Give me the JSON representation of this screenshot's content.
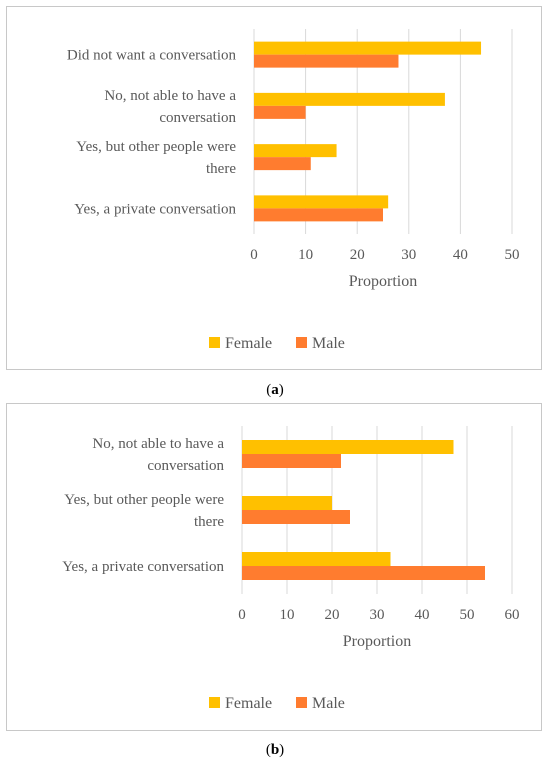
{
  "colors": {
    "female": "#FFC000",
    "male": "#FF7C2F",
    "grid": "#d9d9d9",
    "text": "#595959"
  },
  "legend": {
    "female": "Female",
    "male": "Male"
  },
  "captions": {
    "a": "a",
    "b": "b"
  },
  "chart_data": [
    {
      "type": "bar",
      "orientation": "horizontal",
      "categories": [
        [
          "Did not want a conversation"
        ],
        [
          "No, not able to have a",
          "conversation"
        ],
        [
          "Yes, but other people were",
          "there"
        ],
        [
          "Yes, a private conversation"
        ]
      ],
      "series": [
        {
          "name": "Female",
          "values": [
            44,
            37,
            16,
            26
          ]
        },
        {
          "name": "Male",
          "values": [
            28,
            10,
            11,
            25
          ]
        }
      ],
      "xlabel": "Proportion",
      "xlim": [
        0,
        50
      ],
      "xticks": [
        0,
        10,
        20,
        30,
        40,
        50
      ],
      "grid": true,
      "legend": "bottom"
    },
    {
      "type": "bar",
      "orientation": "horizontal",
      "categories": [
        [
          "No, not able to have a",
          "conversation"
        ],
        [
          "Yes, but other people were",
          "there"
        ],
        [
          "Yes, a private conversation"
        ]
      ],
      "series": [
        {
          "name": "Female",
          "values": [
            47,
            20,
            33
          ]
        },
        {
          "name": "Male",
          "values": [
            22,
            24,
            54
          ]
        }
      ],
      "xlabel": "Proportion",
      "xlim": [
        0,
        60
      ],
      "xticks": [
        0,
        10,
        20,
        30,
        40,
        50,
        60
      ],
      "grid": true,
      "legend": "bottom"
    }
  ]
}
